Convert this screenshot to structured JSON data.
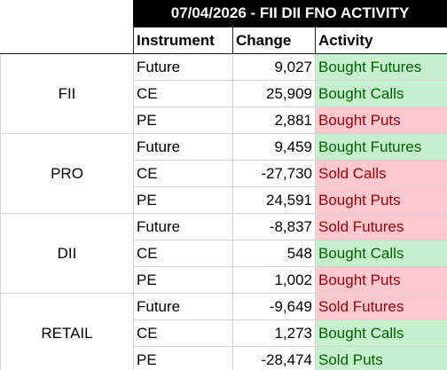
{
  "title": "07/04/2026 - FII DII FNO ACTIVITY",
  "header": [
    "Instrument",
    "Change",
    "Activity"
  ],
  "groups": [
    {
      "name": "FII",
      "rows": [
        {
          "instrument": "Future",
          "change": "9,027",
          "activity": "Bought Futures",
          "activity_fill": "#c6efce",
          "activity_color": "#006100"
        },
        {
          "instrument": "CE",
          "change": "25,909",
          "activity": "Bought Calls",
          "activity_fill": "#c6efce",
          "activity_color": "#006100"
        },
        {
          "instrument": "PE",
          "change": "2,881",
          "activity": "Bought Puts",
          "activity_fill": "#ffc7ce",
          "activity_color": "#9c0006"
        }
      ]
    },
    {
      "name": "PRO",
      "rows": [
        {
          "instrument": "Future",
          "change": "9,459",
          "activity": "Bought Futures",
          "activity_fill": "#c6efce",
          "activity_color": "#006100"
        },
        {
          "instrument": "CE",
          "change": "-27,730",
          "activity": "Sold Calls",
          "activity_fill": "#ffc7ce",
          "activity_color": "#9c0006"
        },
        {
          "instrument": "PE",
          "change": "24,591",
          "activity": "Bought Puts",
          "activity_fill": "#ffc7ce",
          "activity_color": "#9c0006"
        }
      ]
    },
    {
      "name": "DII",
      "rows": [
        {
          "instrument": "Future",
          "change": "-8,837",
          "activity": "Sold Futures",
          "activity_fill": "#ffc7ce",
          "activity_color": "#9c0006"
        },
        {
          "instrument": "CE",
          "change": "548",
          "activity": "Bought Calls",
          "activity_fill": "#c6efce",
          "activity_color": "#006100"
        },
        {
          "instrument": "PE",
          "change": "1,002",
          "activity": "Bought Puts",
          "activity_fill": "#ffc7ce",
          "activity_color": "#9c0006"
        }
      ]
    },
    {
      "name": "RETAIL",
      "rows": [
        {
          "instrument": "Future",
          "change": "-9,649",
          "activity": "Sold Futures",
          "activity_fill": "#ffc7ce",
          "activity_color": "#9c0006"
        },
        {
          "instrument": "CE",
          "change": "1,273",
          "activity": "Bought Calls",
          "activity_fill": "#c6efce",
          "activity_color": "#006100"
        },
        {
          "instrument": "PE",
          "change": "-28,474",
          "activity": "Sold Puts",
          "activity_fill": "#c6efce",
          "activity_color": "#006100"
        }
      ]
    }
  ]
}
